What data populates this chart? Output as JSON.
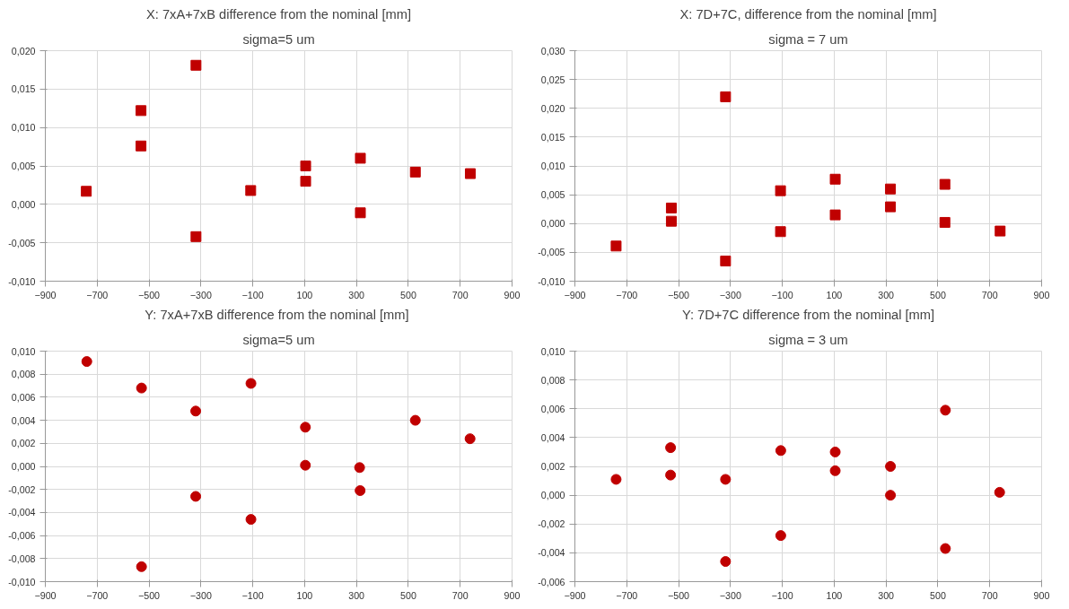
{
  "chart_data": [
    {
      "type": "scatter",
      "title": "X: 7xA+7xB difference from the nominal [mm]",
      "subtitle": "sigma=5 um",
      "marker": "square",
      "grid": true,
      "xlim": [
        -900,
        900
      ],
      "xticks": [
        -900,
        -700,
        -500,
        -300,
        -100,
        100,
        300,
        500,
        700,
        900
      ],
      "ylim": [
        -0.01,
        0.02
      ],
      "yticks": [
        {
          "value": -0.01,
          "label": "-0,010"
        },
        {
          "value": -0.005,
          "label": "-0,005"
        },
        {
          "value": 0,
          "label": "0,000"
        },
        {
          "value": 0.005,
          "label": "0,005"
        },
        {
          "value": 0.01,
          "label": "0,010"
        },
        {
          "value": 0.015,
          "label": "0,015"
        },
        {
          "value": 0.02,
          "label": "0,020"
        }
      ],
      "series": [
        {
          "color": "#c00000",
          "x": [
            -742,
            -531,
            -531,
            -319,
            -319,
            -108,
            104,
            104,
            315,
            315,
            527,
            739
          ],
          "values": [
            0.0017,
            0.0122,
            0.0076,
            0.0181,
            -0.0042,
            0.0018,
            0.005,
            0.003,
            0.006,
            -0.0011,
            0.0042,
            0.004
          ]
        }
      ]
    },
    {
      "type": "scatter",
      "title": "X: 7D+7C, difference from the nominal [mm]",
      "subtitle": "sigma = 7 um",
      "marker": "square",
      "grid": true,
      "xlim": [
        -900,
        900
      ],
      "xticks": [
        -900,
        -700,
        -500,
        -300,
        -100,
        100,
        300,
        500,
        700,
        900
      ],
      "ylim": [
        -0.01,
        0.03
      ],
      "yticks": [
        {
          "value": -0.01,
          "label": "-0,010"
        },
        {
          "value": -0.005,
          "label": "-0,005"
        },
        {
          "value": 0,
          "label": "0,000"
        },
        {
          "value": 0.005,
          "label": "0,005"
        },
        {
          "value": 0.01,
          "label": "0,010"
        },
        {
          "value": 0.015,
          "label": "0,015"
        },
        {
          "value": 0.02,
          "label": "0,020"
        },
        {
          "value": 0.025,
          "label": "0,025"
        },
        {
          "value": 0.03,
          "label": "0,030"
        }
      ],
      "series": [
        {
          "color": "#c00000",
          "x": [
            -741,
            -528,
            -528,
            -319,
            -319,
            -107,
            -107,
            104,
            104,
            317,
            317,
            527,
            527,
            740
          ],
          "values": [
            -0.0039,
            0.0027,
            0.0004,
            0.022,
            -0.0065,
            0.0057,
            -0.0014,
            0.0077,
            0.0015,
            0.006,
            0.0029,
            0.0068,
            0.0002,
            -0.0013
          ]
        }
      ]
    },
    {
      "type": "scatter",
      "title": "Y: 7xA+7xB difference from the nominal  [mm]",
      "subtitle": "sigma=5 um",
      "marker": "circle",
      "grid": true,
      "xlim": [
        -900,
        900
      ],
      "xticks": [
        -900,
        -700,
        -500,
        -300,
        -100,
        100,
        300,
        500,
        700,
        900
      ],
      "ylim": [
        -0.01,
        0.01
      ],
      "yticks": [
        {
          "value": -0.01,
          "label": "-0,010"
        },
        {
          "value": -0.008,
          "label": "-0,008"
        },
        {
          "value": -0.006,
          "label": "-0,006"
        },
        {
          "value": -0.004,
          "label": "-0,004"
        },
        {
          "value": -0.002,
          "label": "-0,002"
        },
        {
          "value": 0,
          "label": "0,000"
        },
        {
          "value": 0.002,
          "label": "0,002"
        },
        {
          "value": 0.004,
          "label": "0,004"
        },
        {
          "value": 0.006,
          "label": "0,006"
        },
        {
          "value": 0.008,
          "label": "0,008"
        },
        {
          "value": 0.01,
          "label": "0,010"
        }
      ],
      "series": [
        {
          "color": "#c00000",
          "x": [
            -740,
            -529,
            -529,
            -320,
            -320,
            -107,
            -107,
            103,
            103,
            312,
            314,
            527,
            738
          ],
          "values": [
            0.0091,
            0.0068,
            -0.0087,
            0.0048,
            -0.0026,
            0.0072,
            -0.0046,
            0.0034,
            0.0001,
            -0.0001,
            -0.0021,
            0.004,
            0.0024
          ]
        }
      ]
    },
    {
      "type": "scatter",
      "title": "Y: 7D+7C difference from the nominal [mm]",
      "subtitle": "sigma = 3 um",
      "marker": "circle",
      "grid": true,
      "xlim": [
        -900,
        900
      ],
      "xticks": [
        -900,
        -700,
        -500,
        -300,
        -100,
        100,
        300,
        500,
        700,
        900
      ],
      "ylim": [
        -0.006,
        0.01
      ],
      "yticks": [
        {
          "value": -0.006,
          "label": "-0,006"
        },
        {
          "value": -0.004,
          "label": "-0,004"
        },
        {
          "value": -0.002,
          "label": "-0,002"
        },
        {
          "value": 0,
          "label": "0,000"
        },
        {
          "value": 0.002,
          "label": "0,002"
        },
        {
          "value": 0.004,
          "label": "0,004"
        },
        {
          "value": 0.006,
          "label": "0,006"
        },
        {
          "value": 0.008,
          "label": "0,008"
        },
        {
          "value": 0.01,
          "label": "0,010"
        }
      ],
      "series": [
        {
          "color": "#c00000",
          "x": [
            -741,
            -531,
            -531,
            -319,
            -319,
            -106,
            -106,
            104,
            104,
            317,
            317,
            529,
            529,
            738
          ],
          "values": [
            0.0011,
            0.0033,
            0.0014,
            0.0011,
            -0.0046,
            0.0031,
            -0.0028,
            0.003,
            0.0017,
            0.002,
            0.0,
            0.0059,
            -0.0037,
            0.0002
          ]
        }
      ]
    }
  ]
}
